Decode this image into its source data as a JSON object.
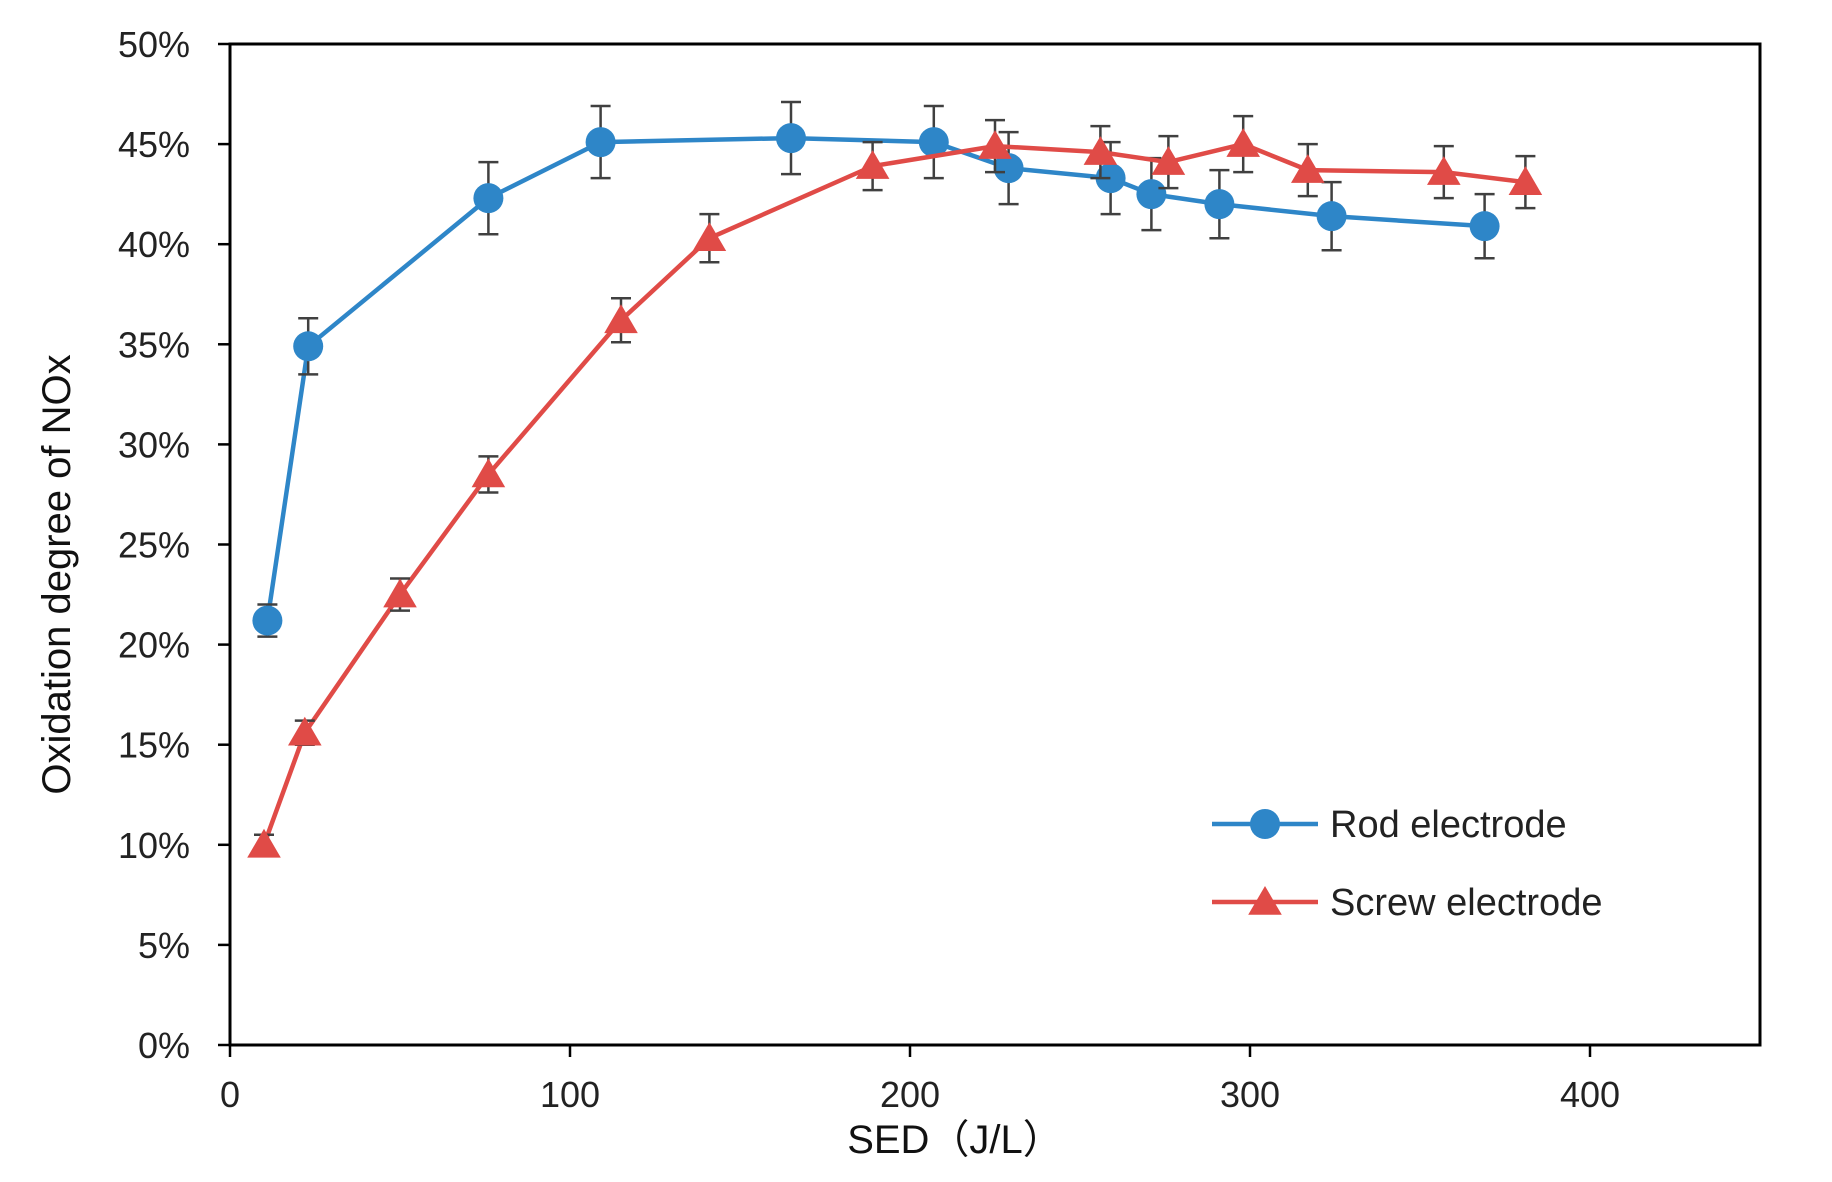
{
  "chart_data": {
    "type": "line",
    "title": "",
    "xlabel": "SED（J/L）",
    "ylabel": "Oxidation degree of NOx",
    "xlim": [
      0,
      450
    ],
    "ylim": [
      0,
      50
    ],
    "x_ticks": [
      0,
      100,
      200,
      300,
      400
    ],
    "x_tick_labels": [
      "0",
      "100",
      "200",
      "300",
      "400"
    ],
    "y_ticks": [
      0,
      5,
      10,
      15,
      20,
      25,
      30,
      35,
      40,
      45,
      50
    ],
    "y_tick_labels": [
      "0%",
      "5%",
      "10%",
      "15%",
      "20%",
      "25%",
      "30%",
      "35%",
      "40%",
      "45%",
      "50%"
    ],
    "grid": false,
    "legend_position": "bottom-right",
    "series": [
      {
        "name": "Rod electrode",
        "color": "#2E86C8",
        "marker": "circle",
        "points": [
          {
            "x": 11,
            "y": 21.2,
            "err": 0.8
          },
          {
            "x": 23,
            "y": 34.9,
            "err": 1.4
          },
          {
            "x": 76,
            "y": 42.3,
            "err": 1.8
          },
          {
            "x": 109,
            "y": 45.1,
            "err": 1.8
          },
          {
            "x": 165,
            "y": 45.3,
            "err": 1.8
          },
          {
            "x": 207,
            "y": 45.1,
            "err": 1.8
          },
          {
            "x": 229,
            "y": 43.8,
            "err": 1.8
          },
          {
            "x": 259,
            "y": 43.3,
            "err": 1.8
          },
          {
            "x": 271,
            "y": 42.5,
            "err": 1.8
          },
          {
            "x": 291,
            "y": 42.0,
            "err": 1.7
          },
          {
            "x": 324,
            "y": 41.4,
            "err": 1.7
          },
          {
            "x": 369,
            "y": 40.9,
            "err": 1.6
          }
        ]
      },
      {
        "name": "Screw electrode",
        "color": "#E04B47",
        "marker": "triangle",
        "points": [
          {
            "x": 10,
            "y": 10.0,
            "err": 0.5
          },
          {
            "x": 22,
            "y": 15.6,
            "err": 0.6
          },
          {
            "x": 50,
            "y": 22.5,
            "err": 0.8
          },
          {
            "x": 76,
            "y": 28.5,
            "err": 0.9
          },
          {
            "x": 115,
            "y": 36.2,
            "err": 1.1
          },
          {
            "x": 141,
            "y": 40.3,
            "err": 1.2
          },
          {
            "x": 189,
            "y": 43.9,
            "err": 1.2
          },
          {
            "x": 225,
            "y": 44.9,
            "err": 1.3
          },
          {
            "x": 256,
            "y": 44.6,
            "err": 1.3
          },
          {
            "x": 276,
            "y": 44.1,
            "err": 1.3
          },
          {
            "x": 298,
            "y": 45.0,
            "err": 1.4
          },
          {
            "x": 317,
            "y": 43.7,
            "err": 1.3
          },
          {
            "x": 357,
            "y": 43.6,
            "err": 1.3
          },
          {
            "x": 381,
            "y": 43.1,
            "err": 1.3
          }
        ]
      }
    ]
  }
}
